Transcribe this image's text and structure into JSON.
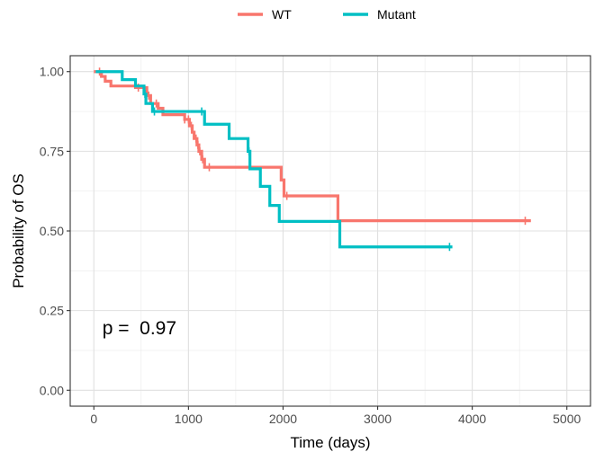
{
  "chart_data": {
    "type": "line",
    "subtype": "kaplan-meier",
    "xlabel": "Time (days)",
    "ylabel": "Probability of OS",
    "xlim": [
      -250,
      5250
    ],
    "ylim": [
      -0.05,
      1.05
    ],
    "x_ticks": [
      0,
      1000,
      2000,
      3000,
      4000,
      5000
    ],
    "y_ticks": [
      0.0,
      0.25,
      0.5,
      0.75,
      1.0
    ],
    "x_tick_labels": [
      "0",
      "1000",
      "2000",
      "3000",
      "4000",
      "5000"
    ],
    "y_tick_labels": [
      "0.00",
      "0.25",
      "0.50",
      "0.75",
      "1.00"
    ],
    "grid": true,
    "legend_position": "top",
    "annotation": "p =  0.97",
    "series": [
      {
        "name": "WT",
        "color": "#F8766D",
        "steps": [
          [
            0,
            1.0
          ],
          [
            80,
            0.985
          ],
          [
            120,
            0.97
          ],
          [
            180,
            0.955
          ],
          [
            440,
            0.95
          ],
          [
            560,
            0.925
          ],
          [
            600,
            0.9
          ],
          [
            680,
            0.885
          ],
          [
            730,
            0.865
          ],
          [
            960,
            0.85
          ],
          [
            1010,
            0.83
          ],
          [
            1040,
            0.81
          ],
          [
            1060,
            0.79
          ],
          [
            1090,
            0.77
          ],
          [
            1110,
            0.75
          ],
          [
            1140,
            0.725
          ],
          [
            1170,
            0.7
          ],
          [
            1980,
            0.66
          ],
          [
            2010,
            0.61
          ],
          [
            2580,
            0.532
          ],
          [
            4620,
            0.532
          ]
        ],
        "censor_x": [
          60,
          470,
          580,
          660,
          960,
          1000,
          1030,
          1080,
          1100,
          1120,
          1150,
          1220,
          2040,
          4560
        ]
      },
      {
        "name": "Mutant",
        "color": "#00BFC4",
        "steps": [
          [
            20,
            1.0
          ],
          [
            300,
            0.975
          ],
          [
            440,
            0.955
          ],
          [
            530,
            0.93
          ],
          [
            550,
            0.9
          ],
          [
            620,
            0.875
          ],
          [
            1170,
            0.835
          ],
          [
            1430,
            0.79
          ],
          [
            1630,
            0.75
          ],
          [
            1650,
            0.695
          ],
          [
            1760,
            0.64
          ],
          [
            1860,
            0.58
          ],
          [
            1960,
            0.53
          ],
          [
            2600,
            0.45
          ],
          [
            3790,
            0.45
          ]
        ],
        "censor_x": [
          540,
          640,
          1140,
          1640,
          3760
        ]
      }
    ]
  }
}
